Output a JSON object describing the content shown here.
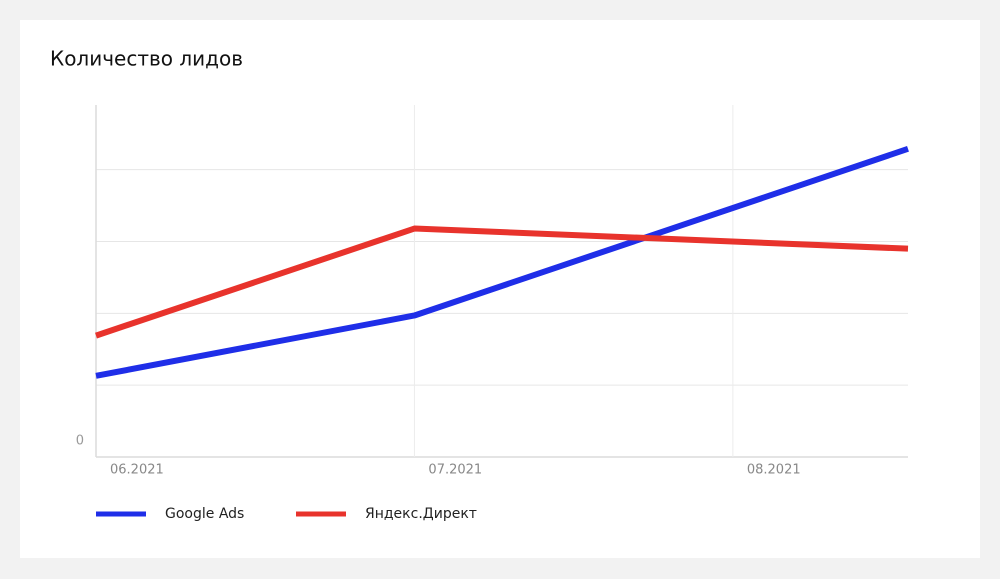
{
  "chart_data": {
    "type": "line",
    "title": "Количество лидов",
    "x": [
      0,
      1,
      2.55
    ],
    "xlim": [
      0,
      2.55
    ],
    "xticks": [
      {
        "value": 0,
        "label": "06.2021"
      },
      {
        "value": 1,
        "label": "07.2021"
      },
      {
        "value": 2,
        "label": "08.2021"
      }
    ],
    "ylim": [
      0,
      4.9
    ],
    "yticks": [
      0
    ],
    "ygrid": [
      1,
      2,
      3,
      4
    ],
    "grid": true,
    "legend": "bottom",
    "series": [
      {
        "name": "Google Ads",
        "color": "#1f2ee8",
        "values": [
          1.13,
          1.97,
          4.29
        ]
      },
      {
        "name": "Яндекс.Директ",
        "color": "#e8332c",
        "values": [
          1.69,
          3.18,
          2.9
        ]
      }
    ]
  }
}
